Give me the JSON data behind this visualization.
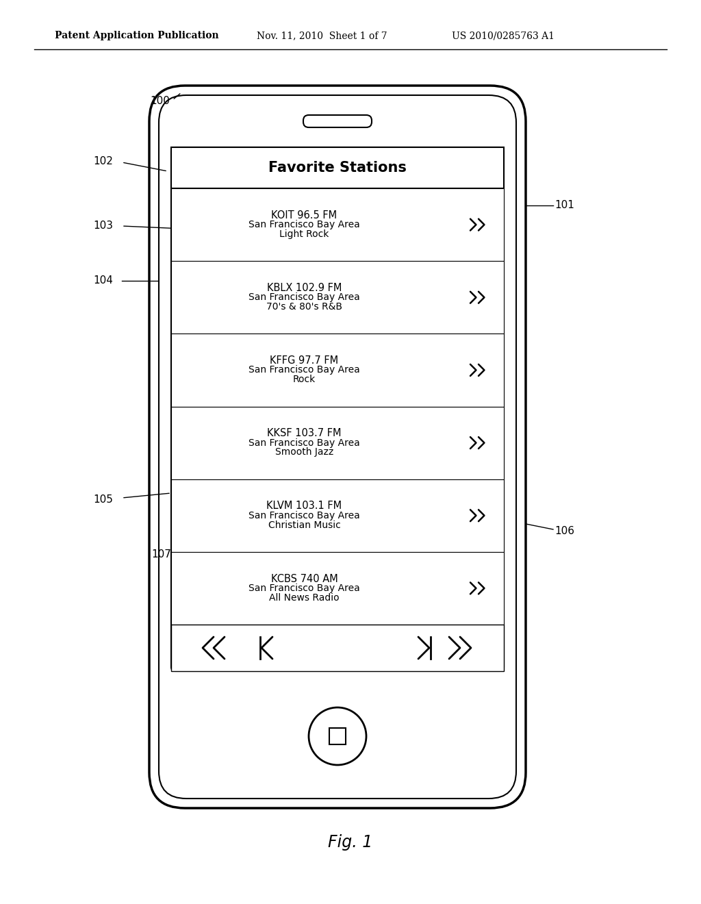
{
  "bg_color": "#ffffff",
  "header_left": "Patent Application Publication",
  "header_mid": "Nov. 11, 2010  Sheet 1 of 7",
  "header_right": "US 2010/0285763 A1",
  "fig_label": "Fig. 1",
  "title": "Favorite Stations",
  "stations": [
    {
      "name": "KOIT 96.5 FM",
      "area": "San Francisco Bay Area",
      "genre": "Light Rock"
    },
    {
      "name": "KBLX 102.9 FM",
      "area": "San Francisco Bay Area",
      "genre": "70's & 80's R&B"
    },
    {
      "name": "KFFG 97.7 FM",
      "area": "San Francisco Bay Area",
      "genre": "Rock"
    },
    {
      "name": "KKSF 103.7 FM",
      "area": "San Francisco Bay Area",
      "genre": "Smooth Jazz"
    },
    {
      "name": "KLVM 103.1 FM",
      "area": "San Francisco Bay Area",
      "genre": "Christian Music"
    },
    {
      "name": "KCBS 740 AM",
      "area": "San Francisco Bay Area",
      "genre": "All News Radio"
    }
  ]
}
